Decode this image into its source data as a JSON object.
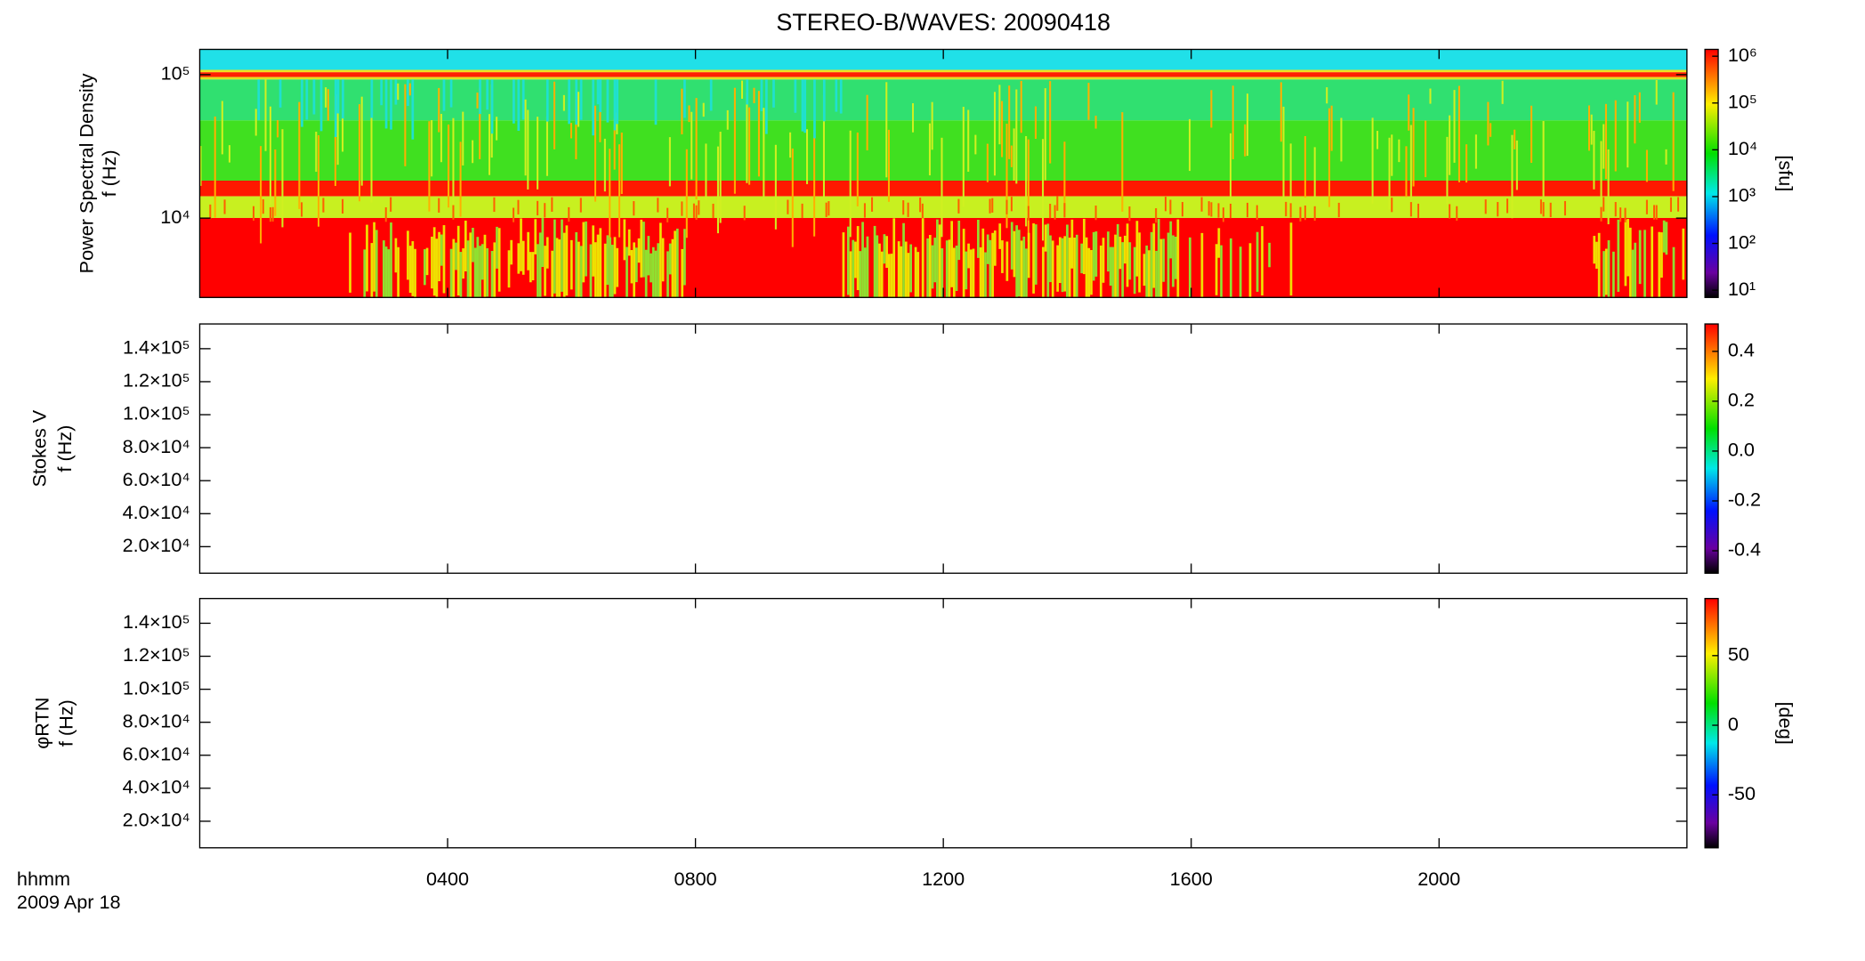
{
  "chart_data": [
    {
      "type": "spectrogram",
      "title": "STEREO-B/WAVES: 20090418",
      "ylabel": [
        "Power Spectral Density",
        "f (Hz)"
      ],
      "ylog": true,
      "ylim": [
        2800,
        150000
      ],
      "yticks": [
        {
          "value": 10000,
          "label": "10⁴"
        },
        {
          "value": 100000,
          "label": "10⁵"
        }
      ],
      "colorbar": {
        "label": "[sfu]",
        "log": true,
        "lim": [
          7,
          1400000
        ],
        "ticks": [
          {
            "value": 10,
            "label": "10¹"
          },
          {
            "value": 100,
            "label": "10²"
          },
          {
            "value": 1000,
            "label": "10³"
          },
          {
            "value": 10000,
            "label": "10⁴"
          },
          {
            "value": 100000,
            "label": "10⁵"
          },
          {
            "value": 1000000,
            "label": "10⁶"
          }
        ]
      }
    },
    {
      "type": "spectrogram",
      "ylabel": [
        "Stokes V",
        "f (Hz)"
      ],
      "ylog": false,
      "ylim": [
        3900,
        155000
      ],
      "yticks": [
        {
          "value": 20000,
          "label": "2.0×10⁴"
        },
        {
          "value": 40000,
          "label": "4.0×10⁴"
        },
        {
          "value": 60000,
          "label": "6.0×10⁴"
        },
        {
          "value": 80000,
          "label": "8.0×10⁴"
        },
        {
          "value": 100000,
          "label": "1.0×10⁵"
        },
        {
          "value": 120000,
          "label": "1.2×10⁵"
        },
        {
          "value": 140000,
          "label": "1.4×10⁵"
        }
      ],
      "colorbar": {
        "log": false,
        "lim": [
          -0.49,
          0.51
        ],
        "ticks": [
          {
            "value": -0.4,
            "label": "-0.4"
          },
          {
            "value": -0.2,
            "label": "-0.2"
          },
          {
            "value": 0,
            "label": "0.0"
          },
          {
            "value": 0.2,
            "label": "0.2"
          },
          {
            "value": 0.4,
            "label": "0.4"
          }
        ]
      }
    },
    {
      "type": "spectrogram",
      "ylabel": [
        "φRTN",
        "f (Hz)"
      ],
      "ylog": false,
      "ylim": [
        3900,
        155000
      ],
      "yticks": [
        {
          "value": 20000,
          "label": "2.0×10⁴"
        },
        {
          "value": 40000,
          "label": "4.0×10⁴"
        },
        {
          "value": 60000,
          "label": "6.0×10⁴"
        },
        {
          "value": 80000,
          "label": "8.0×10⁴"
        },
        {
          "value": 100000,
          "label": "1.0×10⁵"
        },
        {
          "value": 120000,
          "label": "1.2×10⁵"
        },
        {
          "value": 140000,
          "label": "1.4×10⁵"
        }
      ],
      "colorbar": {
        "label": "[deg]",
        "log": false,
        "lim": [
          -88,
          91
        ],
        "ticks": [
          -50,
          0,
          50
        ]
      },
      "xlabel": "hhmm",
      "date": "2009 Apr 18",
      "xlim": [
        0,
        24
      ],
      "xticks": [
        {
          "value": 4,
          "label": "0400"
        },
        {
          "value": 8,
          "label": "0800"
        },
        {
          "value": 12,
          "label": "1200"
        },
        {
          "value": 16,
          "label": "1600"
        },
        {
          "value": 20,
          "label": "2000"
        }
      ]
    }
  ]
}
